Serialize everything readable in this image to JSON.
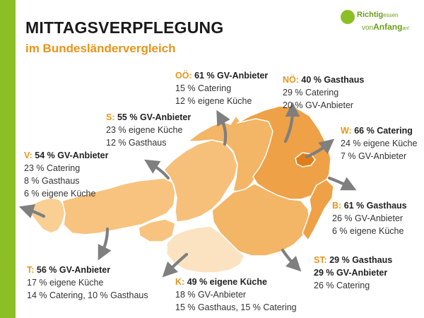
{
  "header": {
    "title": "MITTAGSVERPFLEGUNG",
    "subtitle": "im Bundesländervergleich"
  },
  "logo": {
    "line1_a": "Richtig",
    "line1_b": "essen",
    "line2_a": "von",
    "line2_b": "Anfang",
    "line2_c": "an!"
  },
  "colors": {
    "sidebar": "#8cbf26",
    "accent": "#e8941a",
    "arrow": "#7f7f7f"
  },
  "regions": {
    "ooe": {
      "code": "OÖ:",
      "head": "61 % GV-Anbieter",
      "lines": [
        "15 % Catering",
        "12 % eigene Küche"
      ]
    },
    "noe": {
      "code": "NÖ:",
      "head": "40 % Gasthaus",
      "lines": [
        "29 % Catering",
        "20 % GV-Anbieter"
      ]
    },
    "s": {
      "code": "S:",
      "head": "55 % GV-Anbieter",
      "lines": [
        "23 % eigene Küche",
        "12 % Gasthaus"
      ]
    },
    "w": {
      "code": "W:",
      "head": "66 % Catering",
      "lines": [
        "24 % eigene Küche",
        "7 % GV-Anbieter"
      ]
    },
    "v": {
      "code": "V:",
      "head": "54 % GV-Anbieter",
      "lines": [
        "23 % Catering",
        "8 % Gasthaus",
        "6 % eigene Küche"
      ]
    },
    "b": {
      "code": "B:",
      "head": "61 % Gasthaus",
      "lines": [
        "26 % GV-Anbieter",
        "6 % eigene Küche"
      ]
    },
    "t": {
      "code": "T:",
      "head": "56 % GV-Anbieter",
      "lines": [
        "17 % eigene Küche",
        "14 % Catering, 10 % Gasthaus"
      ]
    },
    "st": {
      "code": "ST:",
      "head": "29 % Gasthaus",
      "bold_line": "29 % GV-Anbieter",
      "lines": [
        "26 % Catering"
      ]
    },
    "k": {
      "code": "K:",
      "head": "49 % eigene Küche",
      "lines": [
        "18 % GV-Anbieter",
        "15 % Gasthaus, 15 % Catering"
      ]
    }
  }
}
